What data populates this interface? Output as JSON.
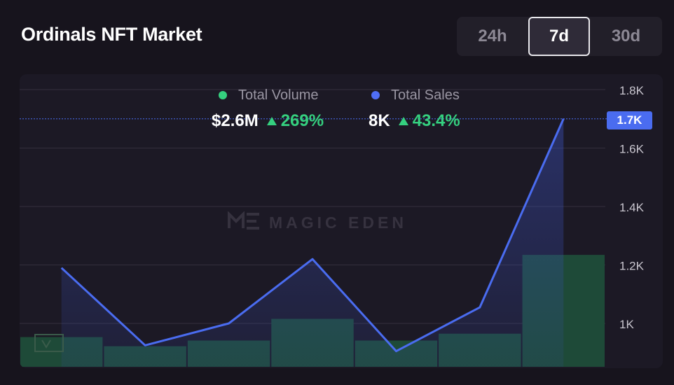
{
  "header": {
    "title": "Ordinals NFT Market"
  },
  "range_tabs": {
    "items": [
      {
        "label": "24h",
        "active": false
      },
      {
        "label": "7d",
        "active": true
      },
      {
        "label": "30d",
        "active": false
      }
    ]
  },
  "legend": {
    "volume": {
      "label": "Total Volume",
      "color": "#35d07f"
    },
    "sales": {
      "label": "Total Sales",
      "color": "#4f6ef7"
    }
  },
  "stats": {
    "volume": {
      "value": "$2.6M",
      "change": "269%",
      "direction": "up"
    },
    "sales": {
      "value": "8K",
      "change": "43.4%",
      "direction": "up"
    }
  },
  "watermark": {
    "text": "MAGIC EDEN"
  },
  "chart_data": {
    "type": "bar+line",
    "series": [
      {
        "name": "Total Volume",
        "kind": "bar",
        "color": "#1e4a38",
        "values": [
          0.26,
          0.18,
          0.23,
          0.42,
          0.23,
          0.29,
          0.98
        ]
      },
      {
        "name": "Total Sales",
        "kind": "line",
        "color": "#4a6cf0",
        "values": [
          1190,
          925,
          1000,
          1220,
          905,
          1055,
          1700
        ]
      }
    ],
    "y_right": {
      "ticks": [
        1000,
        1200,
        1400,
        1600,
        1800
      ],
      "tick_labels": [
        "1K",
        "1.2K",
        "1.4K",
        "1.6K",
        "1.8K"
      ],
      "range": [
        860,
        1800
      ]
    },
    "current_value_label": "1.7K",
    "current_value": 1700,
    "grid": true
  }
}
